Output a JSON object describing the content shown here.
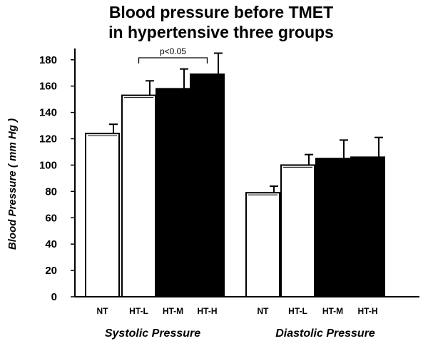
{
  "chart_data": {
    "type": "bar",
    "title_lines": [
      "Blood pressure before TMET",
      "in hypertensive three groups"
    ],
    "ylabel": "Blood Pressure ( mm Hg )",
    "ylim": [
      0,
      190
    ],
    "yticks": [
      0,
      20,
      40,
      60,
      80,
      100,
      120,
      140,
      160,
      180
    ],
    "groups": [
      {
        "name": "Systolic Pressure",
        "categories": [
          "NT",
          "HT-L",
          "HT-M",
          "HT-H"
        ],
        "values": [
          124,
          153,
          158,
          169
        ],
        "errors": [
          7,
          11,
          15,
          16
        ],
        "fills": [
          "#ffffff",
          "#ffffff",
          "#000000",
          "#000000"
        ]
      },
      {
        "name": "Diastolic Pressure",
        "categories": [
          "NT",
          "HT-L",
          "HT-M",
          "HT-H"
        ],
        "values": [
          79,
          100,
          105,
          106
        ],
        "errors": [
          5,
          8,
          14,
          15
        ],
        "fills": [
          "#ffffff",
          "#ffffff",
          "#000000",
          "#000000"
        ]
      }
    ],
    "annotation": {
      "text": "p<0.05",
      "from": "HT-L",
      "to": "HT-H",
      "group": "Systolic Pressure"
    }
  }
}
